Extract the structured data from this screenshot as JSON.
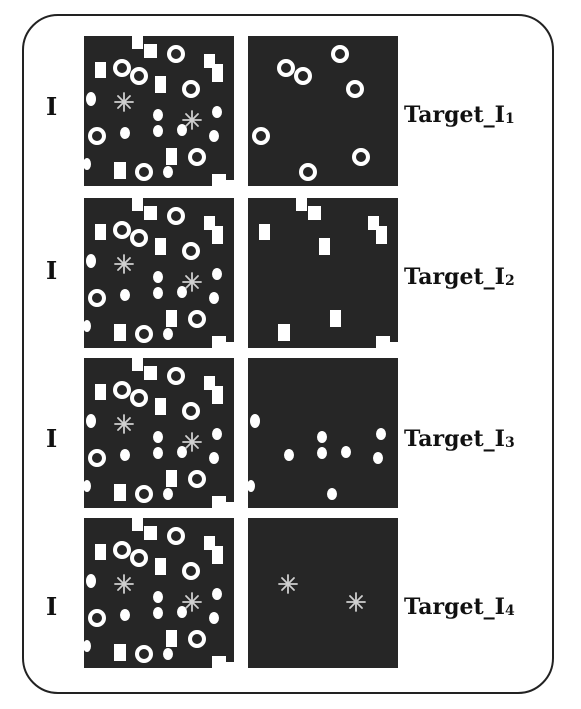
{
  "colors": {
    "panel_bg": "#262626",
    "shape_fill": "#ffffff",
    "star_stroke": "#cfcfcf"
  },
  "rows": [
    {
      "input_label": "I",
      "target_prefix": "Target_I",
      "target_sub": "1",
      "target_shape_type": "circles"
    },
    {
      "input_label": "I",
      "target_prefix": "Target_I",
      "target_sub": "2",
      "target_shape_type": "rectangles"
    },
    {
      "input_label": "I",
      "target_prefix": "Target_I",
      "target_sub": "3",
      "target_shape_type": "dots"
    },
    {
      "input_label": "I",
      "target_prefix": "Target_I",
      "target_sub": "4",
      "target_shape_type": "stars"
    }
  ]
}
